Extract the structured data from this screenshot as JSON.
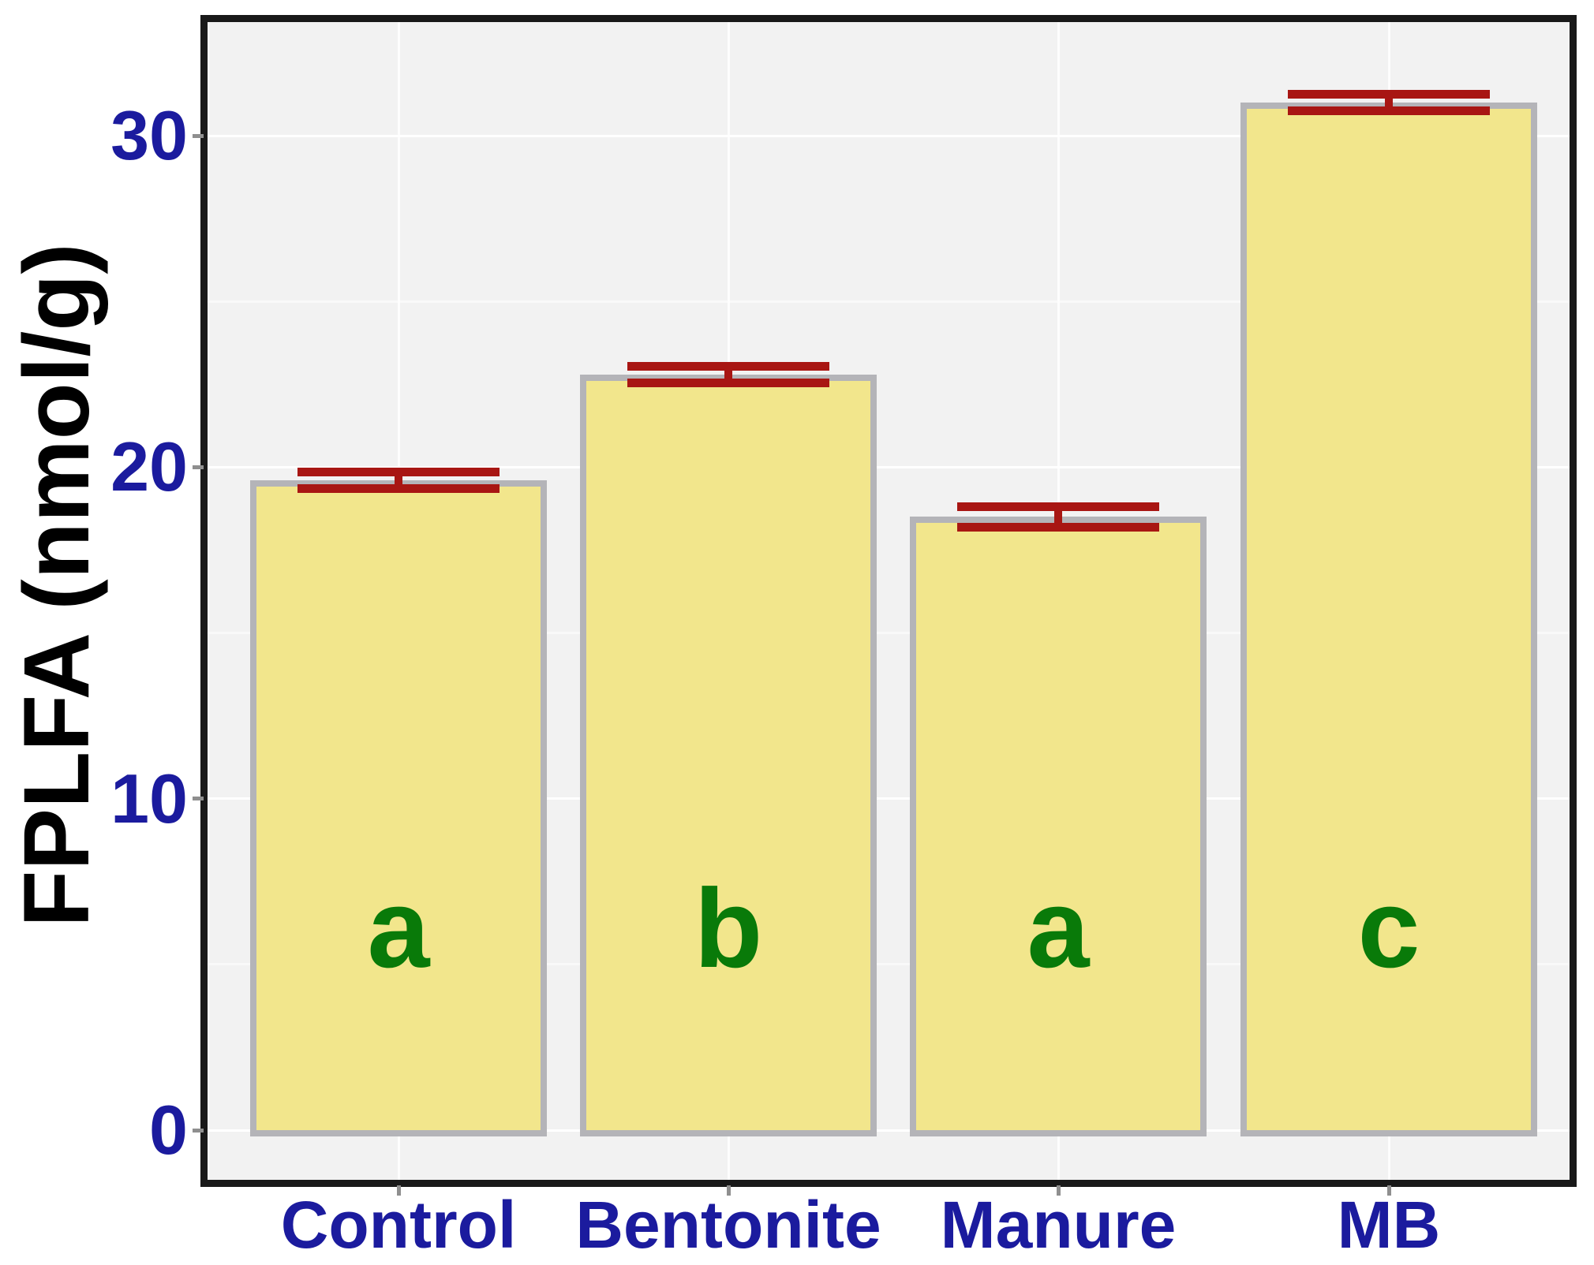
{
  "page": {
    "background": "#ffffff"
  },
  "chart_data": {
    "type": "bar",
    "title": "",
    "ylabel": "FPLFA (nmol/g)",
    "xlabel": "",
    "categories": [
      "Control",
      "Bentonite",
      "Manure",
      "MB"
    ],
    "values": [
      19.6,
      22.8,
      18.5,
      31.0
    ],
    "errors": [
      0.25,
      0.25,
      0.3,
      0.25
    ],
    "significance_letters": [
      "a",
      "b",
      "a",
      "c"
    ],
    "yticks": [
      0,
      10,
      20,
      30
    ],
    "minor_gridlines": [
      5,
      15,
      25
    ],
    "ylim": [
      -1.6,
      33.6
    ],
    "grid": "white horizontal major+minor lines, white vertical line at each category center",
    "legend": "none",
    "colors": {
      "bar_fill": "#f2e68c",
      "bar_border": "#b4b4b8",
      "error_bar": "#a81613",
      "letter": "#097a09",
      "tick_label": "#1b1b9e",
      "axis_label": "#000000",
      "plot_background": "#f2f2f2",
      "frame": "#191919",
      "gridline": "#ffffff",
      "tick_mark": "#8f8f8f"
    }
  }
}
